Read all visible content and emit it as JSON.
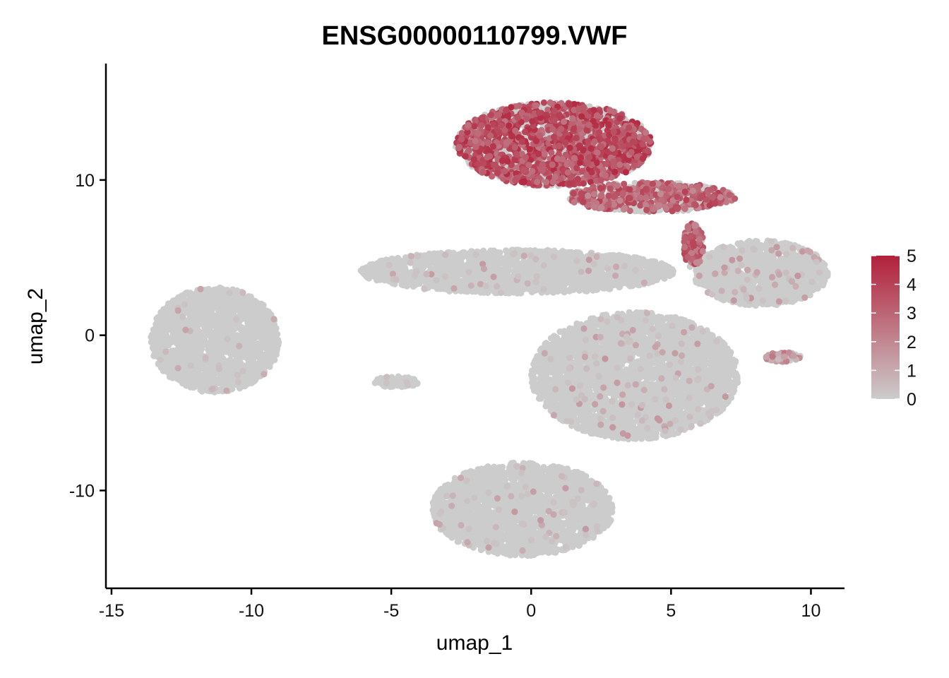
{
  "chart_data": {
    "type": "scatter",
    "title": "ENSG00000110799.VWF",
    "xlabel": "umap_1",
    "ylabel": "umap_2",
    "xlim": [
      -15.2,
      11.2
    ],
    "ylim": [
      -16.3,
      17.5
    ],
    "x_ticks": [
      -15,
      -10,
      -5,
      0,
      5,
      10
    ],
    "x_tick_labels": [
      "-15",
      "-10",
      "-5",
      "0",
      "5",
      "10"
    ],
    "y_ticks": [
      -10,
      0,
      10
    ],
    "y_tick_labels": [
      "-10",
      "0",
      "10"
    ],
    "color_scale": {
      "low": "#cccccc",
      "high": "#b2203a",
      "min": 0,
      "max": 5,
      "ticks": [
        0,
        1,
        2,
        3,
        4,
        5
      ],
      "tick_labels": [
        "0",
        "1",
        "2",
        "3",
        "4",
        "5"
      ],
      "legend_position": "right"
    },
    "clusters": [
      {
        "center": [
          -11.3,
          -0.3
        ],
        "size": [
          4.6,
          6.8
        ],
        "expression_mean": 0.15,
        "expressed_fraction": 0.015
      },
      {
        "center": [
          -4.8,
          -3.0
        ],
        "size": [
          1.6,
          0.7
        ],
        "expression_mean": 0.3,
        "expressed_fraction": 0.05
      },
      {
        "center": [
          -0.5,
          4.1
        ],
        "size": [
          11.2,
          2.8
        ],
        "expression_mean": 0.4,
        "expressed_fraction": 0.04
      },
      {
        "center": [
          0.8,
          12.3
        ],
        "size": [
          7.0,
          5.4
        ],
        "expression_mean": 3.6,
        "expressed_fraction": 0.6
      },
      {
        "center": [
          4.3,
          8.9
        ],
        "size": [
          6.0,
          1.9
        ],
        "expression_mean": 3.0,
        "expressed_fraction": 0.55
      },
      {
        "center": [
          5.8,
          5.8
        ],
        "size": [
          0.7,
          3.0
        ],
        "expression_mean": 3.0,
        "expressed_fraction": 0.6
      },
      {
        "center": [
          8.2,
          4.0
        ],
        "size": [
          4.8,
          4.2
        ],
        "expression_mean": 0.5,
        "expressed_fraction": 0.04
      },
      {
        "center": [
          3.7,
          -2.6
        ],
        "size": [
          7.4,
          8.2
        ],
        "expression_mean": 0.5,
        "expressed_fraction": 0.04
      },
      {
        "center": [
          -0.3,
          -11.2
        ],
        "size": [
          6.5,
          6.0
        ],
        "expression_mean": 0.4,
        "expressed_fraction": 0.03
      },
      {
        "center": [
          9.0,
          -1.4
        ],
        "size": [
          1.3,
          0.6
        ],
        "expression_mean": 1.5,
        "expressed_fraction": 0.6
      }
    ]
  }
}
